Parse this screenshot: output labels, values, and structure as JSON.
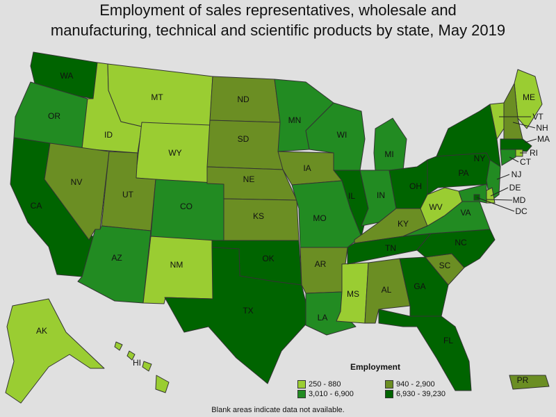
{
  "title_line1": "Employment of sales representatives, wholesale and",
  "title_line2": "manufacturing, technical and scientific products by state, May 2019",
  "legend": {
    "title": "Employment",
    "bins": [
      {
        "label": "250 - 880",
        "color": "#9acd32"
      },
      {
        "label": "940 - 2,900",
        "color": "#6b8e23"
      },
      {
        "label": "3,010 - 6,900",
        "color": "#228b22"
      },
      {
        "label": "6,930 - 39,230",
        "color": "#006400"
      }
    ]
  },
  "footnote": "Blank areas indicate data not available.",
  "states": {
    "WA": 3,
    "OR": 2,
    "CA": 3,
    "ID": 0,
    "NV": 1,
    "MT": 0,
    "WY": 0,
    "UT": 1,
    "AZ": 2,
    "CO": 2,
    "NM": 0,
    "ND": 1,
    "SD": 1,
    "NE": 1,
    "KS": 1,
    "OK": 3,
    "TX": 3,
    "MN": 2,
    "IA": 1,
    "MO": 2,
    "AR": 1,
    "LA": 2,
    "WI": 2,
    "IL": 3,
    "MS": 0,
    "MI": 2,
    "IN": 2,
    "KY": 1,
    "TN": 3,
    "AL": 1,
    "OH": 3,
    "GA": 3,
    "FL": 3,
    "SC": 1,
    "NC": 3,
    "VA": 2,
    "WV": 0,
    "PA": 3,
    "NY": 3,
    "ME": 0,
    "VT": 0,
    "NH": 1,
    "MA": 3,
    "RI": 0,
    "CT": 2,
    "NJ": 2,
    "DE": 0,
    "MD": 2,
    "DC": 3,
    "AK": 0,
    "HI": 0,
    "PR": 1
  }
}
